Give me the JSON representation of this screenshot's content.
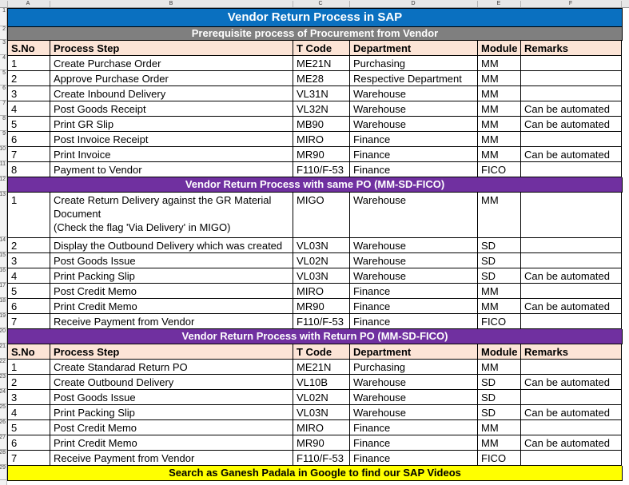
{
  "sheet": {
    "column_letters": [
      "A",
      "B",
      "C",
      "D",
      "E",
      "F"
    ]
  },
  "title": {
    "text": "Vendor Return Process in SAP",
    "bg": "#0A70C0"
  },
  "table": {
    "columns": [
      "S.No",
      "Process Step",
      "T Code",
      "Department",
      "Module",
      "Remarks"
    ],
    "header_bg": "#FCE4D6"
  },
  "sections": [
    {
      "header": "Prerequisite process of Procurement from Vendor",
      "bg": "#7F7F7F",
      "show_columns": true,
      "rows": [
        [
          "1",
          "Create Purchase Order",
          "ME21N",
          "Purchasing",
          "MM",
          ""
        ],
        [
          "2",
          "Approve Purchase Order",
          "ME28",
          "Respective Department",
          "MM",
          ""
        ],
        [
          "3",
          "Create Inbound Delivery",
          "VL31N",
          "Warehouse",
          "MM",
          ""
        ],
        [
          "4",
          "Post Goods Receipt",
          "VL32N",
          "Warehouse",
          "MM",
          "Can be automated"
        ],
        [
          "5",
          "Print GR Slip",
          "MB90",
          "Warehouse",
          "MM",
          "Can be automated"
        ],
        [
          "6",
          "Post Invoice Receipt",
          "MIRO",
          "Finance",
          "MM",
          ""
        ],
        [
          "7",
          "Print Invoice",
          "MR90",
          "Finance",
          "MM",
          "Can be automated"
        ],
        [
          "8",
          "Payment to Vendor",
          "F110/F-53",
          "Finance",
          "FICO",
          ""
        ]
      ]
    },
    {
      "header": "Vendor Return Process with same PO (MM-SD-FICO)",
      "bg": "#7030A0",
      "show_columns": false,
      "rows": [
        [
          "1",
          "Create Return Delivery against the GR Material Document\n(Check the flag 'Via Delivery' in MIGO)",
          "MIGO",
          "Warehouse",
          "MM",
          ""
        ],
        [
          "2",
          "Display the Outbound Delivery which was created",
          "VL03N",
          "Warehouse",
          "SD",
          ""
        ],
        [
          "3",
          "Post Goods Issue",
          "VL02N",
          "Warehouse",
          "SD",
          ""
        ],
        [
          "4",
          "Print Packing Slip",
          "VL03N",
          "Warehouse",
          "SD",
          "Can be automated"
        ],
        [
          "5",
          "Post Credit Memo",
          "MIRO",
          "Finance",
          "MM",
          ""
        ],
        [
          "6",
          "Print Credit Memo",
          "MR90",
          "Finance",
          "MM",
          "Can be automated"
        ],
        [
          "7",
          "Receive Payment from Vendor",
          "F110/F-53",
          "Finance",
          "FICO",
          ""
        ]
      ]
    },
    {
      "header": "Vendor Return Process with Return PO (MM-SD-FICO)",
      "bg": "#7030A0",
      "show_columns": true,
      "rows": [
        [
          "1",
          "Create Standarad Return PO",
          "ME21N",
          "Purchasing",
          "MM",
          ""
        ],
        [
          "2",
          "Create Outbound Delivery",
          "VL10B",
          "Warehouse",
          "SD",
          "Can be automated"
        ],
        [
          "3",
          "Post Goods Issue",
          "VL02N",
          "Warehouse",
          "SD",
          ""
        ],
        [
          "4",
          "Print Packing Slip",
          "VL03N",
          "Warehouse",
          "SD",
          "Can be automated"
        ],
        [
          "5",
          "Post Credit Memo",
          "MIRO",
          "Finance",
          "MM",
          ""
        ],
        [
          "6",
          "Print Credit Memo",
          "MR90",
          "Finance",
          "MM",
          "Can be automated"
        ],
        [
          "7",
          "Receive Payment from Vendor",
          "F110/F-53",
          "Finance",
          "FICO",
          ""
        ]
      ]
    }
  ],
  "footer": {
    "text": "Search as Ganesh Padala in Google to find our SAP Videos",
    "bg": "#FFFF00"
  }
}
